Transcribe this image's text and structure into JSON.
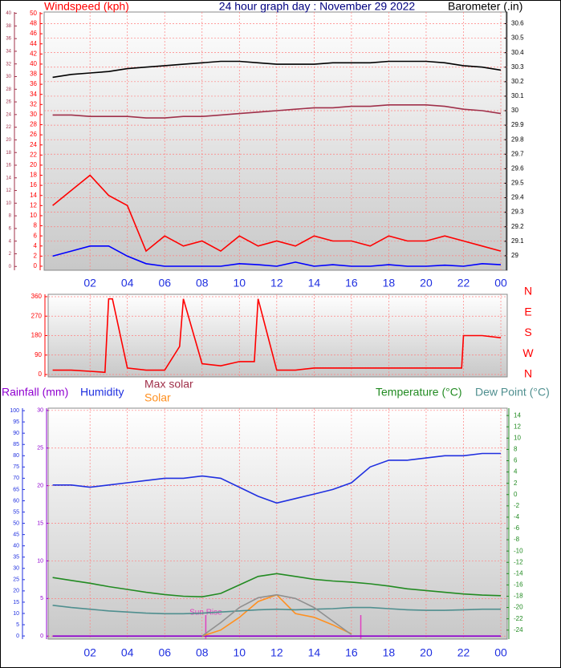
{
  "chart_data": [
    {
      "type": "line",
      "title": "24 hour graph day : November 29 2022",
      "ylabel": "Windspeed (kph)",
      "y2label": "Barometer (.in)",
      "x": [
        0,
        1,
        2,
        3,
        4,
        5,
        6,
        7,
        8,
        9,
        10,
        11,
        12,
        13,
        14,
        15,
        16,
        17,
        18,
        19,
        20,
        21,
        22,
        23,
        24
      ],
      "xlim": [
        -0.5,
        24.3
      ],
      "xticks": [
        {
          "value": 2,
          "label": "02"
        },
        {
          "value": 4,
          "label": "04"
        },
        {
          "value": 6,
          "label": "06"
        },
        {
          "value": 8,
          "label": "08"
        },
        10,
        12,
        14,
        16,
        18,
        20,
        22,
        {
          "value": 24,
          "label": "00"
        }
      ],
      "ylim": [
        -0.8,
        50.3
      ],
      "yticks": [
        0,
        2,
        4,
        6,
        8,
        10,
        12,
        14,
        16,
        18,
        20,
        22,
        24,
        26,
        28,
        30,
        32,
        34,
        36,
        38,
        40,
        42,
        44,
        46,
        48,
        50
      ],
      "y2lim": [
        28.9,
        30.68
      ],
      "y2ticks": [
        29,
        29.1,
        29.2,
        29.3,
        29.4,
        29.5,
        29.6,
        29.7,
        29.8,
        29.9,
        30,
        30.1,
        30.2,
        30.3,
        30.4,
        30.5,
        30.6
      ],
      "y3lim": [
        -0.6,
        40.2
      ],
      "y3ticks": [
        0,
        2,
        4,
        6,
        8,
        10,
        12,
        14,
        16,
        18,
        20,
        22,
        24,
        26,
        28,
        30,
        32,
        34,
        36,
        38,
        40
      ],
      "grid": true,
      "series": [
        {
          "color": "#ff0000",
          "axis": "y",
          "values": [
            12,
            15,
            18,
            14,
            12,
            3,
            6,
            4,
            5,
            3,
            6,
            4,
            5,
            4,
            6,
            5,
            5,
            4,
            6,
            5,
            5,
            6,
            5,
            4,
            3
          ]
        },
        {
          "color": "#0000ff",
          "axis": "y",
          "values": [
            2,
            3,
            4,
            4,
            2,
            0.5,
            0,
            0,
            0,
            0,
            0.5,
            0.3,
            0,
            0.8,
            0,
            0.3,
            0,
            0,
            0.3,
            0,
            0,
            0.2,
            0,
            0.5,
            0.3
          ]
        },
        {
          "color": "#000000",
          "axis": "y2",
          "values": [
            30.23,
            30.25,
            30.26,
            30.27,
            30.29,
            30.3,
            30.31,
            30.32,
            30.33,
            30.34,
            30.34,
            30.33,
            30.32,
            30.32,
            30.32,
            30.33,
            30.33,
            30.33,
            30.34,
            30.34,
            30.34,
            30.33,
            30.31,
            30.3,
            30.28
          ]
        },
        {
          "color": "#a0304a",
          "axis": "y2",
          "values": [
            29.97,
            29.97,
            29.96,
            29.96,
            29.96,
            29.95,
            29.95,
            29.96,
            29.96,
            29.97,
            29.98,
            29.99,
            30,
            30.01,
            30.02,
            30.02,
            30.03,
            30.03,
            30.04,
            30.04,
            30.04,
            30.03,
            30.01,
            30,
            29.98
          ]
        }
      ]
    },
    {
      "type": "line",
      "x": [
        0,
        1,
        2,
        2.8,
        3,
        3.2,
        4,
        5,
        6,
        6.8,
        7,
        8,
        9,
        10,
        10.8,
        11,
        12,
        13,
        14,
        15,
        16,
        17,
        18,
        19,
        20,
        21,
        21.9,
        22,
        23,
        24
      ],
      "xlim": [
        -0.5,
        24.3
      ],
      "ylim": [
        -11,
        371
      ],
      "yticks": [
        0,
        90,
        180,
        270,
        360
      ],
      "y2labels": [
        "N",
        "W",
        "S",
        "E",
        "N"
      ],
      "grid": true,
      "series": [
        {
          "color": "#ff0000",
          "axis": "y",
          "values": [
            20,
            20,
            15,
            10,
            350,
            350,
            30,
            20,
            20,
            130,
            350,
            50,
            40,
            60,
            60,
            350,
            20,
            20,
            30,
            30,
            30,
            30,
            30,
            30,
            30,
            30,
            30,
            180,
            180,
            170
          ]
        }
      ]
    },
    {
      "type": "line",
      "labels": [
        "Max solar"
      ],
      "annotation": "Sun Rise",
      "markers": [
        8.2,
        16.5
      ],
      "x": [
        0,
        1,
        2,
        3,
        4,
        5,
        6,
        7,
        8,
        9,
        10,
        11,
        12,
        13,
        14,
        15,
        16,
        17,
        18,
        19,
        20,
        21,
        22,
        23,
        24
      ],
      "xlim": [
        -0.5,
        24.3
      ],
      "xticks": [
        {
          "value": 2,
          "label": "02"
        },
        {
          "value": 4,
          "label": "04"
        },
        {
          "value": 6,
          "label": "06"
        },
        {
          "value": 8,
          "label": "08"
        },
        10,
        12,
        14,
        16,
        18,
        20,
        22,
        {
          "value": 24,
          "label": "00"
        }
      ],
      "ylim": [
        -1.4,
        101.1
      ],
      "yticks": [
        0,
        5,
        10,
        15,
        20,
        25,
        30,
        35,
        40,
        45,
        50,
        55,
        60,
        65,
        70,
        75,
        80,
        85,
        90,
        95,
        100
      ],
      "y2lim": [
        -25.6,
        15.3
      ],
      "y2ticks": [
        -24,
        -22,
        -20,
        -18,
        -16,
        -14,
        -12,
        -10,
        -8,
        -6,
        -4,
        -2,
        0,
        2,
        4,
        6,
        8,
        10,
        12,
        14
      ],
      "y3lim": [
        -0.4,
        30.3
      ],
      "y3ticks": [
        0,
        5,
        10,
        15,
        20,
        25,
        30
      ],
      "grid": true,
      "series": [
        {
          "name": "Rainfall (mm)",
          "color": "#9000d0",
          "axis": "y3",
          "values": [
            0,
            0,
            0,
            0,
            0,
            0,
            0,
            0,
            0,
            0,
            0,
            0,
            0,
            0,
            0,
            0,
            0,
            0,
            0,
            0,
            0,
            0,
            0,
            0,
            0
          ]
        },
        {
          "name": "Humidity",
          "color": "#2030e0",
          "axis": "y",
          "values": [
            67,
            67,
            66,
            67,
            68,
            69,
            70,
            70,
            71,
            70,
            66,
            62,
            59,
            61,
            63,
            65,
            68,
            75,
            78,
            78,
            79,
            80,
            80,
            81,
            81
          ]
        },
        {
          "name": "Solar",
          "color": "#ff9020",
          "axis": "y3",
          "values": [
            null,
            null,
            null,
            null,
            null,
            null,
            null,
            null,
            0,
            0.8,
            2.5,
            4.6,
            5.5,
            3,
            2.5,
            1.5,
            0.3,
            null,
            null,
            null,
            null,
            null,
            null,
            null,
            null
          ]
        },
        {
          "name": "Temperature (°C)",
          "color": "#228b22",
          "axis": "y2",
          "values": [
            -14.7,
            -15.2,
            -15.7,
            -16.3,
            -16.8,
            -17.3,
            -17.7,
            -18,
            -18.1,
            -17.5,
            -16,
            -14.5,
            -14,
            -14.5,
            -15,
            -15.3,
            -15.5,
            -15.8,
            -16.2,
            -16.7,
            -17,
            -17.3,
            -17.6,
            -17.8,
            -17.9
          ]
        },
        {
          "name": "Dew Point (°C)",
          "color": "#4f8f8f",
          "axis": "y2",
          "values": [
            -19.6,
            -20,
            -20.3,
            -20.6,
            -20.8,
            -21,
            -21.1,
            -21.1,
            -21,
            -20.8,
            -20.6,
            -20.4,
            -20.3,
            -20.4,
            -20.3,
            -20.2,
            -20,
            -20,
            -20.2,
            -20.4,
            -20.5,
            -20.5,
            -20.4,
            -20.3,
            -20.3
          ]
        },
        {
          "color": "#909090",
          "axis": "y3",
          "values": [
            null,
            null,
            null,
            null,
            null,
            null,
            null,
            null,
            0,
            1.8,
            3.8,
            5.1,
            5.5,
            5,
            3.8,
            2,
            0.2,
            null,
            null,
            null,
            null,
            null,
            null,
            null,
            null
          ]
        }
      ]
    }
  ]
}
